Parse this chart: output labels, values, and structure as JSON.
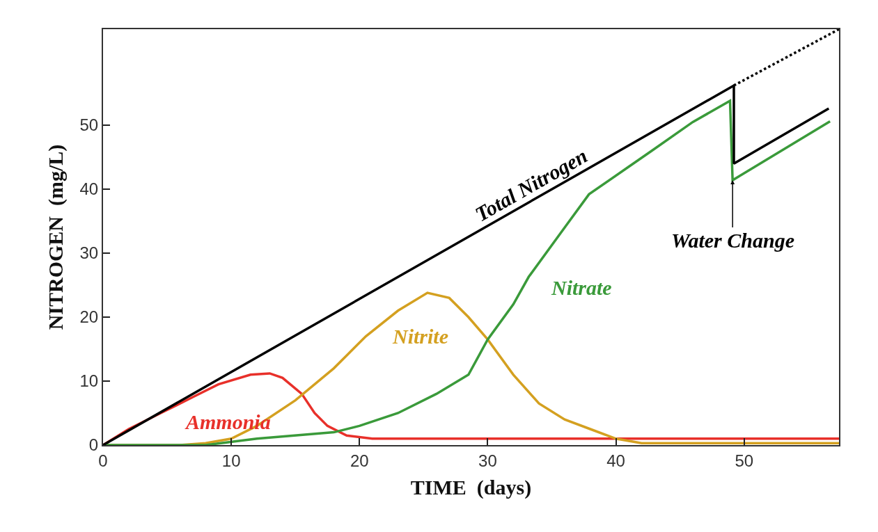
{
  "chart_data": {
    "type": "line",
    "xlabel": "TIME  (days)",
    "ylabel": "NITROGEN  (mg/L)",
    "xlim": [
      0,
      57.4
    ],
    "ylim": [
      0,
      65
    ],
    "xticks": [
      0,
      10,
      20,
      30,
      40,
      50
    ],
    "yticks": [
      0,
      10,
      20,
      30,
      40,
      50
    ],
    "legend": false,
    "marker": "none",
    "line_style": "solid",
    "series": [
      {
        "name": "Ammonia",
        "color": "#e8302a",
        "x": [
          0,
          2,
          4.5,
          7,
          9,
          11.5,
          13,
          14,
          15.5,
          16.5,
          17.5,
          19,
          21,
          23,
          57.4
        ],
        "values": [
          0,
          2.5,
          5,
          7.5,
          9.5,
          11,
          11.2,
          10.5,
          8,
          5,
          3,
          1.5,
          1,
          1,
          1
        ]
      },
      {
        "name": "Nitrite",
        "color": "#d4a020",
        "x": [
          0,
          6,
          8,
          10,
          12,
          15,
          18,
          20.5,
          23,
          25.3,
          27,
          28.5,
          30,
          32,
          34,
          36,
          38,
          40,
          42,
          57.4
        ],
        "values": [
          0,
          0,
          0.3,
          1,
          3,
          7,
          12,
          17,
          21,
          23.8,
          23,
          20,
          16.5,
          11,
          6.5,
          4,
          2.5,
          1,
          0.3,
          0.3
        ]
      },
      {
        "name": "Nitrate",
        "color": "#3a9a3a",
        "x": [
          0,
          8,
          12,
          18,
          20,
          23,
          26,
          28.5,
          30,
          32,
          33.2,
          36,
          37.9,
          41,
          42.8,
          46,
          48.9,
          49.1,
          56.7
        ],
        "values": [
          0,
          0,
          1,
          2,
          3,
          5,
          8,
          11,
          16.5,
          22,
          26.3,
          34,
          39.2,
          43.5,
          46,
          50.5,
          53.8,
          41.4,
          50.6
        ]
      },
      {
        "name": "Total Nitrogen",
        "color": "#000000",
        "x": [
          0,
          49.2,
          49.2,
          56.6
        ],
        "values": [
          0,
          56.2,
          44,
          52.6
        ]
      },
      {
        "color": "#000000",
        "line_style": "dotted",
        "x": [
          49.2,
          57.4
        ],
        "values": [
          56.2,
          65
        ]
      }
    ],
    "annotations": [
      {
        "text": "Water Change",
        "x": 49.1,
        "y": 41.4
      }
    ]
  }
}
